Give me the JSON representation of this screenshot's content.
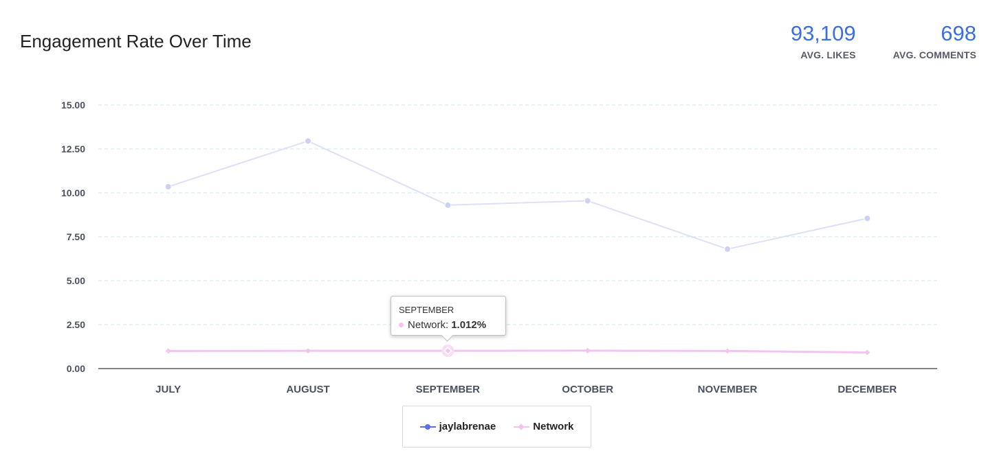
{
  "header": {
    "title": "Engagement Rate Over Time",
    "stats": [
      {
        "value": "93,109",
        "label": "AVG. LIKES"
      },
      {
        "value": "698",
        "label": "AVG. COMMENTS"
      }
    ]
  },
  "chart_data": {
    "type": "line",
    "categories": [
      "JULY",
      "AUGUST",
      "SEPTEMBER",
      "OCTOBER",
      "NOVEMBER",
      "DECEMBER"
    ],
    "series": [
      {
        "name": "jaylabrenae",
        "values": [
          10.35,
          12.95,
          9.3,
          9.55,
          6.8,
          8.55
        ],
        "color": "#5b6fe6",
        "line_color": "#dde0f7",
        "marker": "circle"
      },
      {
        "name": "Network",
        "values": [
          1.0,
          1.01,
          1.012,
          1.02,
          1.0,
          0.92
        ],
        "color": "#f3c4f0",
        "line_color": "#f3c4f0",
        "marker": "diamond"
      }
    ],
    "y_ticks": [
      "15.00",
      "12.50",
      "10.00",
      "7.50",
      "5.00",
      "2.50",
      "0.00"
    ],
    "ylim": [
      0,
      15
    ],
    "grid": true,
    "legend_position": "bottom"
  },
  "tooltip": {
    "title": "SEPTEMBER",
    "series": "Network:",
    "value": "1.012%"
  }
}
